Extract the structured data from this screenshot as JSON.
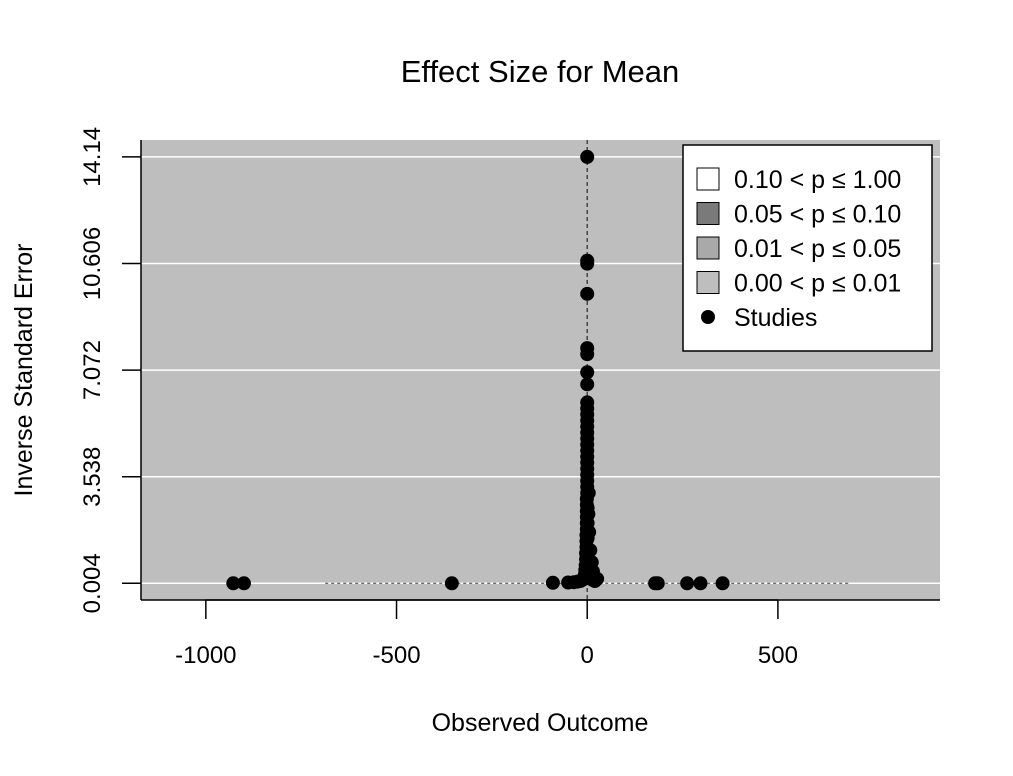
{
  "chart_data": {
    "type": "scatter",
    "title": "Effect Size for Mean",
    "xlabel": "Observed Outcome",
    "ylabel": "Inverse Standard Error",
    "xlim": [
      -1170,
      925
    ],
    "ylim": [
      -0.55,
      14.7
    ],
    "x_ticks": [
      -1000,
      -500,
      0,
      500
    ],
    "x_tick_labels": [
      "-1000",
      "-500",
      "0",
      "500"
    ],
    "y_ticks": [
      0.004,
      3.538,
      7.072,
      10.606,
      14.14
    ],
    "y_tick_labels": [
      "0.004",
      "3.538",
      "7.072",
      "10.606",
      "14.14"
    ],
    "grid": "horizontal",
    "reference_x": 0,
    "contour_lines": {
      "x_left": -687,
      "x_right": 687,
      "y": 0.004
    },
    "legend": {
      "position": "top-right",
      "items": [
        {
          "label": "0.10 < p ≤ 1.00",
          "fill": "#ffffff",
          "marker": "square"
        },
        {
          "label": "0.05 < p ≤ 0.10",
          "fill": "#7a7a7a",
          "marker": "square"
        },
        {
          "label": "0.01 < p ≤ 0.05",
          "fill": "#a9a9a9",
          "marker": "square"
        },
        {
          "label": "0.00 < p ≤ 0.01",
          "fill": "#bebebe",
          "marker": "square"
        },
        {
          "label": "Studies",
          "fill": "#000000",
          "marker": "circle"
        }
      ]
    },
    "colors": {
      "panel": "#bebebe",
      "grid": "#ffffff",
      "points": "#000000"
    },
    "series": [
      {
        "points": [
          [
            -928,
            0.004
          ],
          [
            -900,
            0.004
          ],
          [
            -355,
            0.004
          ],
          [
            -90,
            0.02
          ],
          [
            -50,
            0.03
          ],
          [
            -35,
            0.04
          ],
          [
            -25,
            0.06
          ],
          [
            -18,
            0.08
          ],
          [
            -12,
            0.12
          ],
          [
            -8,
            0.2
          ],
          [
            -6,
            0.3
          ],
          [
            -5,
            0.45
          ],
          [
            -4,
            0.6
          ],
          [
            -3,
            0.8
          ],
          [
            -3,
            1.0
          ],
          [
            -2,
            1.2
          ],
          [
            -2,
            1.4
          ],
          [
            -2,
            1.6
          ],
          [
            -1,
            1.8
          ],
          [
            -1,
            2.0
          ],
          [
            -1,
            2.2
          ],
          [
            -1,
            2.4
          ],
          [
            -1,
            2.6
          ],
          [
            -1,
            2.8
          ],
          [
            0,
            3.0
          ],
          [
            0,
            3.2
          ],
          [
            0,
            3.4
          ],
          [
            0,
            3.6
          ],
          [
            0,
            3.8
          ],
          [
            0,
            4.0
          ],
          [
            0,
            4.2
          ],
          [
            0,
            4.4
          ],
          [
            0,
            4.6
          ],
          [
            0,
            4.8
          ],
          [
            0,
            5.0
          ],
          [
            0,
            5.2
          ],
          [
            0,
            5.4
          ],
          [
            0,
            5.6
          ],
          [
            0,
            5.8
          ],
          [
            0,
            6.0
          ],
          [
            0,
            6.6
          ],
          [
            0,
            7.0
          ],
          [
            0,
            7.6
          ],
          [
            0,
            7.8
          ],
          [
            0,
            9.6
          ],
          [
            0,
            10.6
          ],
          [
            0,
            10.7
          ],
          [
            0,
            14.14
          ],
          [
            1,
            2.5
          ],
          [
            1,
            2.0
          ],
          [
            1,
            1.5
          ],
          [
            2,
            1.0
          ],
          [
            2,
            0.8
          ],
          [
            3,
            0.6
          ],
          [
            4,
            0.45
          ],
          [
            5,
            0.35
          ],
          [
            7,
            0.25
          ],
          [
            10,
            0.18
          ],
          [
            14,
            0.12
          ],
          [
            20,
            0.08
          ],
          [
            26,
            0.15
          ],
          [
            15,
            0.4
          ],
          [
            12,
            0.7
          ],
          [
            8,
            1.1
          ],
          [
            5,
            1.7
          ],
          [
            3,
            2.3
          ],
          [
            4,
            3.0
          ],
          [
            178,
            0.004
          ],
          [
            185,
            0.004
          ],
          [
            262,
            0.004
          ],
          [
            297,
            0.004
          ],
          [
            355,
            0.004
          ]
        ]
      }
    ]
  }
}
